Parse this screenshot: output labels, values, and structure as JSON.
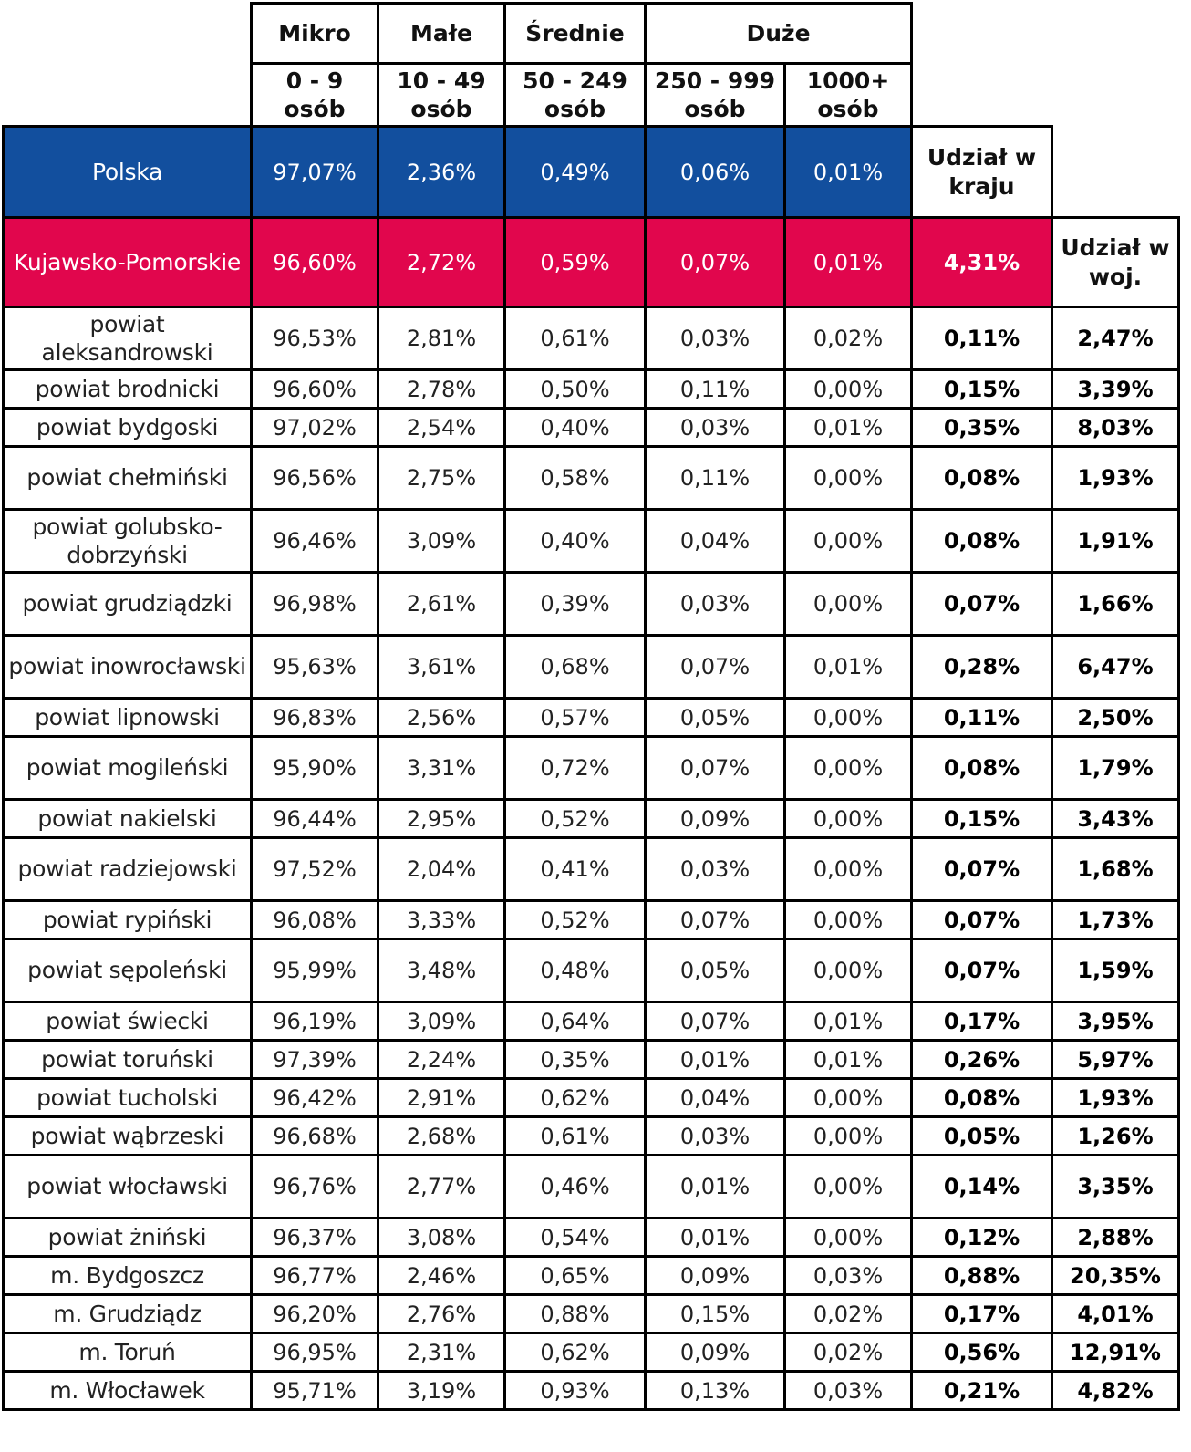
{
  "header": {
    "groups": [
      "Mikro",
      "Małe",
      "Średnie",
      "Duże"
    ],
    "sizes": [
      "0 - 9\nosób",
      "10 - 49\nosób",
      "50 - 249\nosób",
      "250 - 999\nosób",
      "1000+\nosób"
    ]
  },
  "share_country_label": "Udział w kraju",
  "share_voivodeship_label": "Udział w woj.",
  "national": {
    "name": "Polska",
    "values": [
      "97,07%",
      "2,36%",
      "0,49%",
      "0,06%",
      "0,01%"
    ]
  },
  "region": {
    "name": "Kujawsko-Pomorskie",
    "values": [
      "96,60%",
      "2,72%",
      "0,59%",
      "0,07%",
      "0,01%"
    ],
    "share_country": "4,31%"
  },
  "rows": [
    [
      "powiat aleksandrowski",
      "96,53%",
      "2,81%",
      "0,61%",
      "0,03%",
      "0,02%",
      "0,11%",
      "2,47%"
    ],
    [
      "powiat brodnicki",
      "96,60%",
      "2,78%",
      "0,50%",
      "0,11%",
      "0,00%",
      "0,15%",
      "3,39%"
    ],
    [
      "powiat bydgoski",
      "97,02%",
      "2,54%",
      "0,40%",
      "0,03%",
      "0,01%",
      "0,35%",
      "8,03%"
    ],
    [
      "powiat chełmiński",
      "96,56%",
      "2,75%",
      "0,58%",
      "0,11%",
      "0,00%",
      "0,08%",
      "1,93%"
    ],
    [
      "powiat golubsko-dobrzyński",
      "96,46%",
      "3,09%",
      "0,40%",
      "0,04%",
      "0,00%",
      "0,08%",
      "1,91%"
    ],
    [
      "powiat grudziądzki",
      "96,98%",
      "2,61%",
      "0,39%",
      "0,03%",
      "0,00%",
      "0,07%",
      "1,66%"
    ],
    [
      "powiat inowrocławski",
      "95,63%",
      "3,61%",
      "0,68%",
      "0,07%",
      "0,01%",
      "0,28%",
      "6,47%"
    ],
    [
      "powiat lipnowski",
      "96,83%",
      "2,56%",
      "0,57%",
      "0,05%",
      "0,00%",
      "0,11%",
      "2,50%"
    ],
    [
      "powiat mogileński",
      "95,90%",
      "3,31%",
      "0,72%",
      "0,07%",
      "0,00%",
      "0,08%",
      "1,79%"
    ],
    [
      "powiat nakielski",
      "96,44%",
      "2,95%",
      "0,52%",
      "0,09%",
      "0,00%",
      "0,15%",
      "3,43%"
    ],
    [
      "powiat radziejowski",
      "97,52%",
      "2,04%",
      "0,41%",
      "0,03%",
      "0,00%",
      "0,07%",
      "1,68%"
    ],
    [
      "powiat rypiński",
      "96,08%",
      "3,33%",
      "0,52%",
      "0,07%",
      "0,00%",
      "0,07%",
      "1,73%"
    ],
    [
      "powiat sępoleński",
      "95,99%",
      "3,48%",
      "0,48%",
      "0,05%",
      "0,00%",
      "0,07%",
      "1,59%"
    ],
    [
      "powiat świecki",
      "96,19%",
      "3,09%",
      "0,64%",
      "0,07%",
      "0,01%",
      "0,17%",
      "3,95%"
    ],
    [
      "powiat toruński",
      "97,39%",
      "2,24%",
      "0,35%",
      "0,01%",
      "0,01%",
      "0,26%",
      "5,97%"
    ],
    [
      "powiat tucholski",
      "96,42%",
      "2,91%",
      "0,62%",
      "0,04%",
      "0,00%",
      "0,08%",
      "1,93%"
    ],
    [
      "powiat wąbrzeski",
      "96,68%",
      "2,68%",
      "0,61%",
      "0,03%",
      "0,00%",
      "0,05%",
      "1,26%"
    ],
    [
      "powiat włocławski",
      "96,76%",
      "2,77%",
      "0,46%",
      "0,01%",
      "0,00%",
      "0,14%",
      "3,35%"
    ],
    [
      "powiat żniński",
      "96,37%",
      "3,08%",
      "0,54%",
      "0,01%",
      "0,00%",
      "0,12%",
      "2,88%"
    ],
    [
      "m. Bydgoszcz",
      "96,77%",
      "2,46%",
      "0,65%",
      "0,09%",
      "0,03%",
      "0,88%",
      "20,35%"
    ],
    [
      "m. Grudziądz",
      "96,20%",
      "2,76%",
      "0,88%",
      "0,15%",
      "0,02%",
      "0,17%",
      "4,01%"
    ],
    [
      "m. Toruń",
      "96,95%",
      "2,31%",
      "0,62%",
      "0,09%",
      "0,02%",
      "0,56%",
      "12,91%"
    ],
    [
      "m. Włocławek",
      "95,71%",
      "3,19%",
      "0,93%",
      "0,13%",
      "0,03%",
      "0,21%",
      "4,82%"
    ]
  ]
}
